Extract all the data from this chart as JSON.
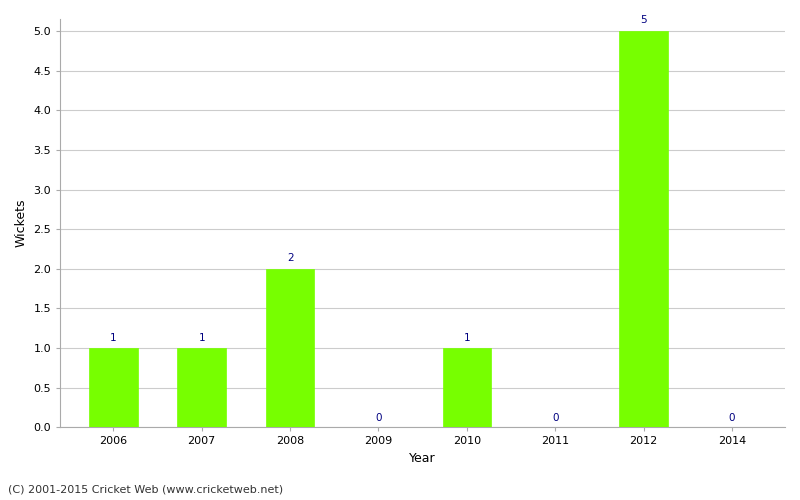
{
  "years": [
    "2006",
    "2007",
    "2008",
    "2009",
    "2010",
    "2011",
    "2012",
    "2014"
  ],
  "wickets": [
    1,
    1,
    2,
    0,
    1,
    0,
    5,
    0
  ],
  "bar_color": "#77ff00",
  "bar_edge_color": "#77ff00",
  "xlabel": "Year",
  "ylabel": "Wickets",
  "ylim_max": 5.15,
  "yticks": [
    0.0,
    0.5,
    1.0,
    1.5,
    2.0,
    2.5,
    3.0,
    3.5,
    4.0,
    4.5,
    5.0
  ],
  "label_color": "#000080",
  "label_fontsize": 7.5,
  "axis_fontsize": 9,
  "tick_fontsize": 8,
  "background_color": "#ffffff",
  "grid_color": "#cccccc",
  "footer_text": "(C) 2001-2015 Cricket Web (www.cricketweb.net)",
  "footer_fontsize": 8,
  "footer_color": "#333333"
}
